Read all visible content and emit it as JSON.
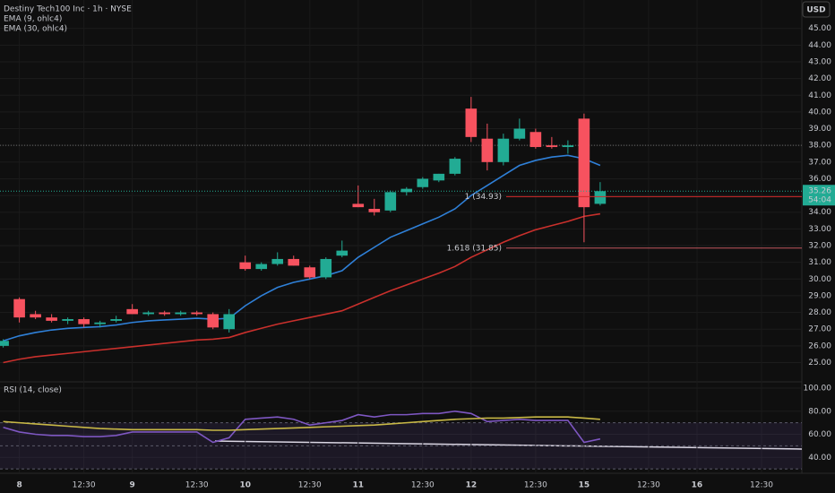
{
  "chart_data": [
    {
      "type": "candlestick",
      "title": "Destiny Tech100 Inc · 1h · NYSE",
      "currency": "USD",
      "countdown": "54:04",
      "up_color": "#22ab94",
      "down_color": "#f7525f",
      "open": [
        26.0,
        28.8,
        27.9,
        27.7,
        27.5,
        27.6,
        27.3,
        27.5,
        28.2,
        27.9,
        28.0,
        27.9,
        28.0,
        27.9,
        27.0,
        31.0,
        30.6,
        30.9,
        31.2,
        30.7,
        30.1,
        31.4,
        34.5,
        34.2,
        34.1,
        35.2,
        35.5,
        35.9,
        36.3,
        40.2,
        38.4,
        37.0,
        38.4,
        38.8,
        38.0,
        37.9,
        39.6,
        34.5
      ],
      "high": [
        26.4,
        28.9,
        28.1,
        27.9,
        27.7,
        27.7,
        27.5,
        27.8,
        28.5,
        28.1,
        28.1,
        28.1,
        28.1,
        28.0,
        28.2,
        31.4,
        31.0,
        31.6,
        31.4,
        30.8,
        31.3,
        32.3,
        35.6,
        34.8,
        35.3,
        35.5,
        36.1,
        36.3,
        37.3,
        40.9,
        39.3,
        38.7,
        39.6,
        39.0,
        38.5,
        38.3,
        39.9,
        35.8
      ],
      "low": [
        25.9,
        27.4,
        27.6,
        27.4,
        27.3,
        27.1,
        27.1,
        27.4,
        27.9,
        27.8,
        27.8,
        27.8,
        27.8,
        27.0,
        26.8,
        30.5,
        30.5,
        30.8,
        30.8,
        30.0,
        30.0,
        31.3,
        34.3,
        33.8,
        34.0,
        35.0,
        35.4,
        35.8,
        36.2,
        38.2,
        36.5,
        36.8,
        38.3,
        37.8,
        37.8,
        37.5,
        32.2,
        34.4
      ],
      "close": [
        26.3,
        27.7,
        27.7,
        27.5,
        27.6,
        27.3,
        27.4,
        27.6,
        27.9,
        28.0,
        27.9,
        28.0,
        27.9,
        27.1,
        27.9,
        30.6,
        30.9,
        31.2,
        30.8,
        30.1,
        31.2,
        31.7,
        34.3,
        34.0,
        35.2,
        35.4,
        36.0,
        36.3,
        37.2,
        38.5,
        37.0,
        38.4,
        39.0,
        37.9,
        37.9,
        38.0,
        34.3,
        35.26
      ],
      "series": [
        {
          "name": "EMA (9, ohlc4)",
          "color": "#2f80d8",
          "values": [
            26.3,
            26.6,
            26.8,
            26.95,
            27.05,
            27.1,
            27.15,
            27.25,
            27.4,
            27.5,
            27.55,
            27.6,
            27.65,
            27.6,
            27.65,
            28.4,
            29.0,
            29.5,
            29.8,
            30.0,
            30.2,
            30.5,
            31.3,
            31.9,
            32.5,
            32.9,
            33.3,
            33.7,
            34.2,
            35.0,
            35.6,
            36.2,
            36.8,
            37.1,
            37.3,
            37.4,
            37.2,
            36.8
          ]
        },
        {
          "name": "EMA (30, ohlc4)",
          "color": "#c9302c",
          "values": [
            25.0,
            25.2,
            25.35,
            25.45,
            25.55,
            25.65,
            25.75,
            25.85,
            25.95,
            26.05,
            26.15,
            26.25,
            26.35,
            26.4,
            26.5,
            26.8,
            27.05,
            27.3,
            27.5,
            27.7,
            27.9,
            28.1,
            28.5,
            28.9,
            29.3,
            29.65,
            30.0,
            30.35,
            30.75,
            31.3,
            31.75,
            32.2,
            32.6,
            32.95,
            33.2,
            33.45,
            33.75,
            33.9
          ]
        }
      ],
      "hlines": [
        38
      ],
      "fib_levels": [
        {
          "value": 34.93,
          "label": "1 (34.93)"
        },
        {
          "value": 31.85,
          "label": "1.618 (31.85)"
        }
      ],
      "xlim": [
        -0.2,
        49.5
      ],
      "ylim": [
        23.9,
        46.7
      ],
      "yticks": [
        {
          "value": 25,
          "label": "25.00"
        },
        {
          "value": 26,
          "label": "26.00"
        },
        {
          "value": 27,
          "label": "27.00"
        },
        {
          "value": 28,
          "label": "28.00"
        },
        {
          "value": 29,
          "label": "29.00"
        },
        {
          "value": 30,
          "label": "30.00"
        },
        {
          "value": 31,
          "label": "31.00"
        },
        {
          "value": 32,
          "label": "32.00"
        },
        {
          "value": 33,
          "label": "33.00"
        },
        {
          "value": 34,
          "label": "34.00"
        },
        {
          "value": 35,
          "label": "35.00"
        },
        {
          "value": 36,
          "label": "36.00"
        },
        {
          "value": 37,
          "label": "37.00"
        },
        {
          "value": 38,
          "label": "38.00"
        },
        {
          "value": 39,
          "label": "39.00"
        },
        {
          "value": 40,
          "label": "40.00"
        },
        {
          "value": 41,
          "label": "41.00"
        },
        {
          "value": 42,
          "label": "42.00"
        },
        {
          "value": 43,
          "label": "43.00"
        },
        {
          "value": 44,
          "label": "44.00"
        },
        {
          "value": 45,
          "label": "45.00"
        }
      ],
      "xticks": [
        {
          "value": 1,
          "label": "8"
        },
        {
          "value": 5,
          "label": "12:30"
        },
        {
          "value": 8,
          "label": "9"
        },
        {
          "value": 12,
          "label": "12:30"
        },
        {
          "value": 15,
          "label": "10"
        },
        {
          "value": 19,
          "label": "12:30"
        },
        {
          "value": 22,
          "label": "11"
        },
        {
          "value": 26,
          "label": "12:30"
        },
        {
          "value": 29,
          "label": "12"
        },
        {
          "value": 33,
          "label": "12:30"
        },
        {
          "value": 36,
          "label": "15"
        },
        {
          "value": 40,
          "label": "12:30"
        },
        {
          "value": 43,
          "label": "16"
        },
        {
          "value": 47,
          "label": "12:30"
        }
      ]
    },
    {
      "type": "line",
      "title": "RSI (14, close)",
      "series": [
        {
          "color": "#7e57c2",
          "values": [
            66,
            62,
            60,
            59,
            59,
            58,
            58,
            59,
            62,
            62,
            62,
            62,
            62,
            53,
            57,
            73,
            74,
            75,
            73,
            68,
            70,
            72,
            77,
            75,
            77,
            77,
            78,
            78,
            80,
            78,
            71,
            72,
            73,
            72,
            72,
            72,
            53,
            56
          ]
        },
        {
          "color": "#c8b846",
          "values": [
            71,
            70,
            69,
            68,
            67,
            66,
            65,
            64.5,
            64,
            64,
            64,
            64,
            64,
            63.5,
            63.5,
            64,
            64.5,
            65,
            65.5,
            66,
            66.5,
            67,
            67.5,
            68,
            69,
            70,
            71,
            72,
            73,
            73.5,
            74,
            74,
            74.5,
            75,
            75,
            75,
            74,
            73
          ]
        }
      ],
      "bands": [
        70,
        50,
        30
      ],
      "xlim": [
        -0.2,
        49.5
      ],
      "ylim": [
        27,
        100
      ],
      "yticks": [
        {
          "value": 40,
          "label": "40.00"
        },
        {
          "value": 60,
          "label": "60.00"
        },
        {
          "value": 80,
          "label": "80.00"
        },
        {
          "value": 100,
          "label": "100.00"
        }
      ]
    }
  ]
}
